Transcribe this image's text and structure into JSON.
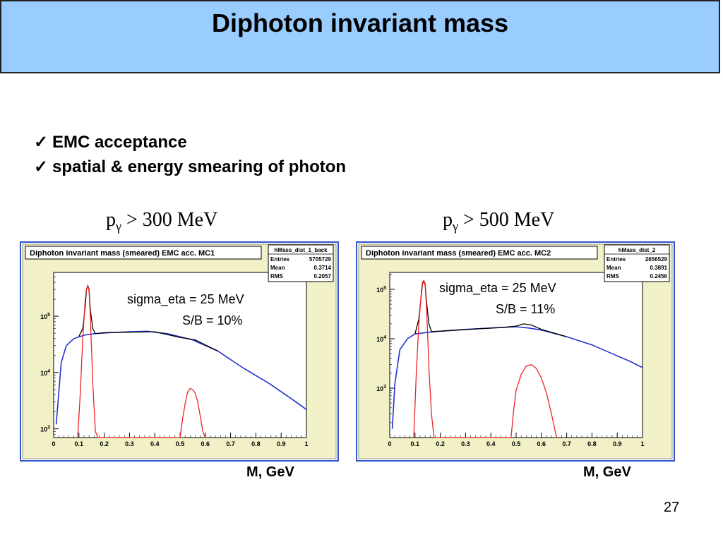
{
  "slide": {
    "title": "Diphoton invariant mass",
    "bullets": [
      "EMC acceptance",
      "spatial & energy smearing of photon"
    ],
    "check_glyph": "✓",
    "page_number": "27"
  },
  "colors": {
    "title_bg": "#99ccff",
    "frame": "#3355cc",
    "plot_bg": "#f2f0c6",
    "signal": "#ee2222",
    "background": "#2233cc",
    "total": "#000000"
  },
  "chart_data": [
    {
      "type": "line",
      "cut_label": {
        "p": "p",
        "sub": "γ",
        "rest": " > 300 MeV"
      },
      "title": "Diphoton invariant mass (smeared) EMC acc. MC1",
      "stats": {
        "name": "hMass_dist_1_back",
        "rows": [
          [
            "Entries",
            "5705729"
          ],
          [
            "Mean",
            "0.3714"
          ],
          [
            "RMS",
            "0.2057"
          ]
        ]
      },
      "annotations": [
        "sigma_eta = 25 MeV",
        "S/B = 10%"
      ],
      "xlabel": "M, GeV",
      "xlim": [
        0,
        1
      ],
      "xticks": [
        0,
        0.1,
        0.2,
        0.3,
        0.4,
        0.5,
        0.6,
        0.7,
        0.8,
        0.9,
        1
      ],
      "xtick_labels": [
        "0",
        "0.1",
        "0.2",
        "0.3",
        "0.4",
        "0.5",
        "0.6",
        "0.7",
        "0.8",
        "0.9",
        "1"
      ],
      "ylog": true,
      "ylim": [
        700,
        600000
      ],
      "yticks": [
        1000,
        10000,
        100000
      ],
      "ytick_labels": [
        {
          "base": "10",
          "exp": "3"
        },
        {
          "base": "10",
          "exp": "4"
        },
        {
          "base": "10",
          "exp": "5"
        }
      ],
      "series": [
        {
          "role": "background",
          "x": [
            0.01,
            0.03,
            0.05,
            0.08,
            0.12,
            0.16,
            0.22,
            0.3,
            0.37,
            0.45,
            0.55,
            0.65,
            0.75,
            0.85,
            0.95,
            1.0
          ],
          "y": [
            1200,
            15000,
            30000,
            40000,
            46000,
            49000,
            51000,
            53000,
            54000,
            49000,
            38000,
            24000,
            12000,
            6500,
            3200,
            2200
          ]
        },
        {
          "role": "total",
          "x": [
            0.1,
            0.115,
            0.125,
            0.13,
            0.135,
            0.14,
            0.145,
            0.155,
            0.165,
            0.2,
            0.4,
            0.5,
            0.53,
            0.56,
            0.6,
            0.65
          ],
          "y": [
            44000,
            60000,
            150000,
            300000,
            350000,
            300000,
            130000,
            60000,
            49000,
            51000,
            53000,
            42000,
            40000,
            38000,
            31000,
            24000
          ]
        },
        {
          "role": "signal",
          "x": [
            0.095,
            0.105,
            0.115,
            0.125,
            0.13,
            0.135,
            0.14,
            0.145,
            0.15,
            0.155,
            0.165,
            0.175,
            0.5,
            0.51,
            0.52,
            0.53,
            0.54,
            0.55,
            0.56,
            0.57,
            0.58,
            0.59,
            0.6
          ],
          "y": [
            700,
            4000,
            40000,
            200000,
            300000,
            350000,
            280000,
            100000,
            25000,
            6000,
            900,
            700,
            700,
            1500,
            2800,
            4500,
            5200,
            5000,
            4300,
            3000,
            1700,
            900,
            700
          ]
        }
      ]
    },
    {
      "type": "line",
      "cut_label": {
        "p": "p",
        "sub": "γ",
        "rest": " > 500 MeV"
      },
      "title": "Diphoton invariant mass (smeared) EMC acc. MC2",
      "stats": {
        "name": "hMass_dist_2",
        "rows": [
          [
            "Entries",
            "2656529"
          ],
          [
            "Mean",
            "0.3891"
          ],
          [
            "RMS",
            "0.2456"
          ]
        ]
      },
      "annotations": [
        "sigma_eta = 25 MeV",
        "S/B = 11%"
      ],
      "xlabel": "M, GeV",
      "xlim": [
        0,
        1
      ],
      "xticks": [
        0,
        0.1,
        0.2,
        0.3,
        0.4,
        0.5,
        0.6,
        0.7,
        0.8,
        0.9,
        1
      ],
      "xtick_labels": [
        "0",
        "0.1",
        "0.2",
        "0.3",
        "0.4",
        "0.5",
        "0.6",
        "0.7",
        "0.8",
        "0.9",
        "1"
      ],
      "ylog": true,
      "ylim": [
        100,
        220000
      ],
      "yticks": [
        1000,
        10000,
        100000
      ],
      "ytick_labels": [
        {
          "base": "10",
          "exp": "3"
        },
        {
          "base": "10",
          "exp": "4"
        },
        {
          "base": "10",
          "exp": "5"
        }
      ],
      "series": [
        {
          "role": "background",
          "x": [
            0.01,
            0.02,
            0.04,
            0.07,
            0.1,
            0.15,
            0.22,
            0.3,
            0.4,
            0.5,
            0.55,
            0.6,
            0.7,
            0.8,
            0.9,
            0.95,
            1.0
          ],
          "y": [
            150,
            1200,
            6000,
            10000,
            12500,
            13500,
            14500,
            15500,
            16500,
            17500,
            16500,
            15000,
            11000,
            7500,
            4500,
            3500,
            2600
          ]
        },
        {
          "role": "total",
          "x": [
            0.1,
            0.115,
            0.125,
            0.13,
            0.135,
            0.14,
            0.145,
            0.155,
            0.165,
            0.2,
            0.45,
            0.5,
            0.53,
            0.56,
            0.6,
            0.7
          ],
          "y": [
            12500,
            25000,
            80000,
            130000,
            150000,
            130000,
            60000,
            20000,
            14000,
            14200,
            17000,
            18000,
            20000,
            19000,
            15500,
            11000
          ]
        },
        {
          "role": "signal",
          "x": [
            0.095,
            0.105,
            0.115,
            0.125,
            0.13,
            0.135,
            0.14,
            0.145,
            0.15,
            0.155,
            0.165,
            0.175,
            0.48,
            0.49,
            0.5,
            0.52,
            0.54,
            0.56,
            0.58,
            0.6,
            0.62,
            0.64,
            0.66
          ],
          "y": [
            100,
            2000,
            20000,
            90000,
            140000,
            150000,
            120000,
            50000,
            12000,
            2500,
            300,
            100,
            100,
            350,
            900,
            1900,
            2800,
            3000,
            2500,
            1600,
            800,
            300,
            100
          ]
        }
      ]
    }
  ]
}
